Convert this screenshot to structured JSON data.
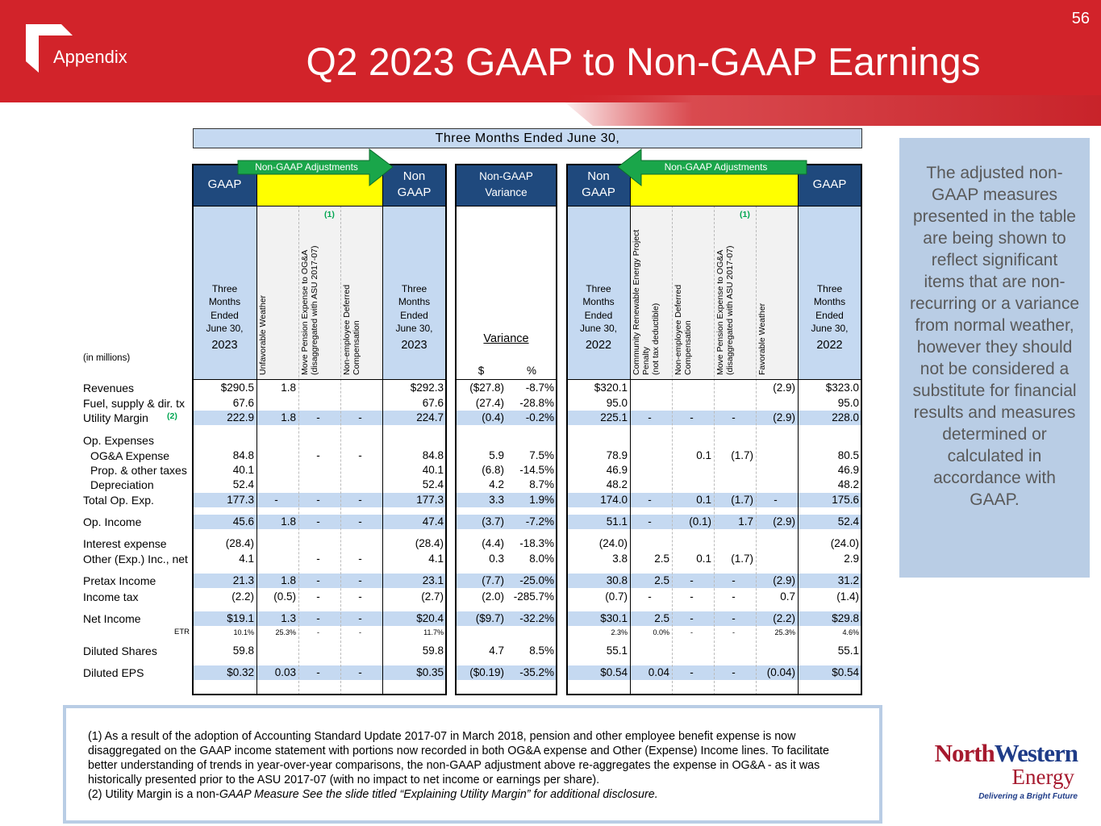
{
  "header": {
    "section": "Appendix",
    "title": "Q2 2023 GAAP to Non-GAAP Earnings",
    "page_number": "56"
  },
  "table": {
    "super_header": "Three Months Ended June 30,",
    "adjustments_labels": [
      "Non-GAAP Adjustments",
      "Non-GAAP Adjustments"
    ],
    "group_headers": [
      [
        "GAAP"
      ],
      [
        "Non",
        "GAAP"
      ],
      [
        "Non-GAAP",
        "Variance"
      ],
      [
        "Non",
        "GAAP"
      ],
      [
        "GAAP"
      ]
    ],
    "variance_label": "Variance",
    "units": "(in millions)",
    "column_headers": [
      {
        "lines": [
          "Three",
          "Months",
          "Ended",
          "June 30,"
        ],
        "year": "2023"
      },
      {
        "rotated": [
          "Unfavorable Weather"
        ]
      },
      {
        "rotated": [
          "Move Pension Expense to OG&A",
          "(disaggregated with ASU 2017-07)"
        ],
        "note": "(1)"
      },
      {
        "rotated": [
          "Non-employee Deferred",
          "Compensation"
        ]
      },
      {
        "lines": [
          "Three",
          "Months",
          "Ended",
          "June 30,"
        ],
        "year": "2023"
      },
      {
        "text": "$"
      },
      {
        "text": "%"
      },
      {
        "lines": [
          "Three",
          "Months",
          "Ended",
          "June 30,"
        ],
        "year": "2022"
      },
      {
        "rotated": [
          "Community Renewable Energy Project",
          "Penalty",
          "(not tax deductible)"
        ]
      },
      {
        "rotated": [
          "Non-employee Deferred",
          "Compensation"
        ]
      },
      {
        "rotated": [
          "Move Pension Expense to OG&A",
          "(disaggregated with ASU 2017-07)"
        ],
        "note": "(1)"
      },
      {
        "rotated": [
          "Favorable Weather"
        ]
      },
      {
        "lines": [
          "Three",
          "Months",
          "Ended",
          "June 30,"
        ],
        "year": "2022"
      }
    ],
    "rows": [
      {
        "label": "Revenues",
        "cells": [
          "$290.5",
          "1.8",
          null,
          null,
          "$292.3",
          "($27.8)",
          "-8.7%",
          "$320.1",
          null,
          null,
          null,
          "(2.9)",
          "$323.0"
        ]
      },
      {
        "label": "Fuel, supply & dir. tx",
        "cells": [
          "67.6",
          null,
          null,
          null,
          "67.6",
          "(27.4)",
          "-28.8%",
          "95.0",
          null,
          null,
          null,
          null,
          "95.0"
        ]
      },
      {
        "label": "Utility Margin",
        "note": "(2)",
        "shaded": true,
        "cells": [
          "222.9",
          "1.8",
          "-",
          "-",
          "224.7",
          "(0.4)",
          "-0.2%",
          "225.1",
          "-",
          "-",
          "-",
          "(2.9)",
          "228.0"
        ]
      },
      {
        "label": "Op. Expenses"
      },
      {
        "label": "OG&A Expense",
        "indent": true,
        "cells": [
          "84.8",
          null,
          "-",
          "-",
          "84.8",
          "5.9",
          "7.5%",
          "78.9",
          null,
          "0.1",
          "(1.7)",
          null,
          "80.5"
        ]
      },
      {
        "label": "Prop. & other taxes",
        "indent": true,
        "cells": [
          "40.1",
          null,
          null,
          null,
          "40.1",
          "(6.8)",
          "-14.5%",
          "46.9",
          null,
          null,
          null,
          null,
          "46.9"
        ]
      },
      {
        "label": "Depreciation",
        "indent": true,
        "cells": [
          "52.4",
          null,
          null,
          null,
          "52.4",
          "4.2",
          "8.7%",
          "48.2",
          null,
          null,
          null,
          null,
          "48.2"
        ]
      },
      {
        "label": "Total Op. Exp.",
        "shaded": true,
        "cells": [
          "177.3",
          "-",
          "-",
          "-",
          "177.3",
          "3.3",
          "1.9%",
          "174.0",
          "-",
          "0.1",
          "(1.7)",
          "-",
          "175.6"
        ]
      },
      {
        "label": "Op. Income",
        "shaded": true,
        "cells": [
          "45.6",
          "1.8",
          "-",
          "-",
          "47.4",
          "(3.7)",
          "-7.2%",
          "51.1",
          "-",
          "(0.1)",
          "1.7",
          "(2.9)",
          "52.4"
        ]
      },
      {
        "label": "Interest expense",
        "cells": [
          "(28.4)",
          null,
          null,
          null,
          "(28.4)",
          "(4.4)",
          "-18.3%",
          "(24.0)",
          null,
          null,
          null,
          null,
          "(24.0)"
        ]
      },
      {
        "label": "Other (Exp.) Inc., net",
        "cells": [
          "4.1",
          null,
          "-",
          "-",
          "4.1",
          "0.3",
          "8.0%",
          "3.8",
          "2.5",
          "0.1",
          "(1.7)",
          null,
          "2.9"
        ]
      },
      {
        "label": "Pretax Income",
        "shaded": true,
        "cells": [
          "21.3",
          "1.8",
          "-",
          "-",
          "23.1",
          "(7.7)",
          "-25.0%",
          "30.8",
          "2.5",
          "-",
          "-",
          "(2.9)",
          "31.2"
        ]
      },
      {
        "label": "Income tax",
        "cells": [
          "(2.2)",
          "(0.5)",
          "-",
          "-",
          "(2.7)",
          "(2.0)",
          "-285.7%",
          "(0.7)",
          "-",
          "-",
          "-",
          "0.7",
          "(1.4)"
        ]
      },
      {
        "label": "Net Income",
        "shaded": true,
        "cells": [
          "$19.1",
          "1.3",
          "-",
          "-",
          "$20.4",
          "($9.7)",
          "-32.2%",
          "$30.1",
          "2.5",
          "-",
          "-",
          "(2.2)",
          "$29.8"
        ]
      },
      {
        "label": "ETR",
        "small": true,
        "cells": [
          "10.1%",
          "25.3%",
          "-",
          "-",
          "11.7%",
          null,
          null,
          "2.3%",
          "0.0%",
          "-",
          "-",
          "25.3%",
          "4.6%"
        ]
      },
      {
        "label": "Diluted Shares",
        "cells": [
          "59.8",
          null,
          null,
          null,
          "59.8",
          "4.7",
          "8.5%",
          "55.1",
          null,
          null,
          null,
          null,
          "55.1"
        ]
      },
      {
        "label": "Diluted EPS",
        "shaded": true,
        "cells": [
          "$0.32",
          "0.03",
          "-",
          "-",
          "$0.35",
          "($0.19)",
          "-35.2%",
          "$0.54",
          "0.04",
          "-",
          "-",
          "(0.04)",
          "$0.54"
        ]
      }
    ]
  },
  "side_note": "The adjusted non-GAAP measures presented in the table are being shown to reflect significant items that are non-recurring or a variance from normal weather, however they should not be considered a substitute for financial results and measures determined or calculated in accordance with GAAP.",
  "footnotes": {
    "note1": "(1) As a result of the adoption of Accounting Standard Update 2017-07 in March 2018, pension and other employee benefit expense is now disaggregated on the GAAP income statement with portions now recorded in both OG&A expense and Other (Expense) Income lines.  To facilitate better understanding of trends in year-over-year comparisons, the non-GAAP adjustment above re-aggregates the expense in OG&A - as it was historically presented prior to the ASU 2017-07 (with no impact to net income or earnings per share).",
    "note2_plain": "(2) Utility Margin is a non-",
    "note2_italic": "GAAP Measure  See the slide titled “Explaining Utility Margin” for additional disclosure."
  },
  "logo": {
    "name_north": "North",
    "name_western": "Western",
    "name_energy": "Energy",
    "tagline": "Delivering a Bright Future"
  }
}
